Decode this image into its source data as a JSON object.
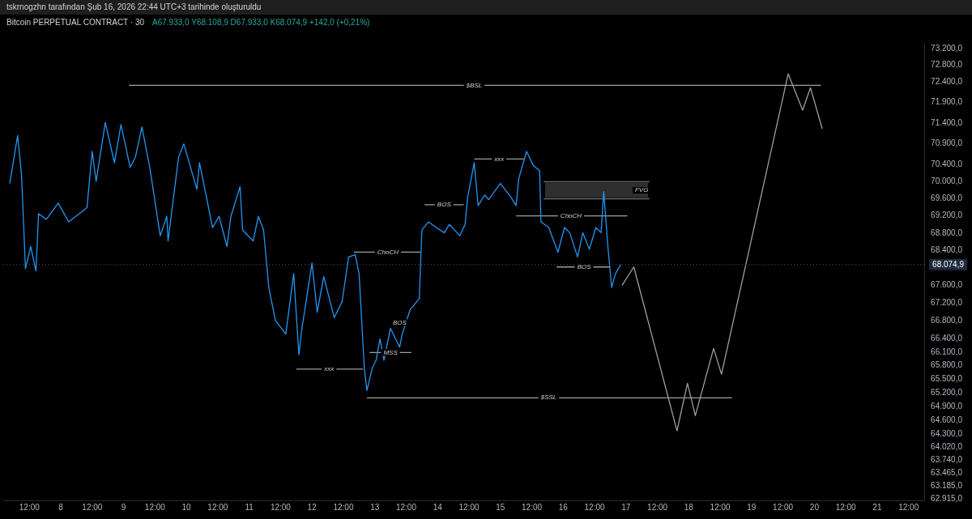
{
  "chart_data": {
    "type": "line",
    "title": "Bitcoin PERPETUAL CONTRACT · 30",
    "subtitle": "A67.933,0 Y68.108,9 D67.933,0 K68.074,9 +142,0 (+0,21%)",
    "annotations": [
      "tskrnogzhn tarafından Şub 16, 2026 22:44 UTC+3 tarihinde oluşturuldu",
      {
        "text": "$BSL",
        "x": "2026-02-14T14:00",
        "y": 72310
      },
      {
        "text": "$SSL",
        "x": "2026-02-15T18:30",
        "y": 65090
      },
      {
        "text": "xxx",
        "x": "2026-02-12T06:30",
        "y": 65720
      },
      {
        "text": "ChoCH",
        "x": "2026-02-13T05:00",
        "y": 68360
      },
      {
        "text": "MSS",
        "x": "2026-02-13T06:00",
        "y": 66090
      },
      {
        "text": "BOS",
        "x": "2026-02-13T09:30",
        "y": 66760
      },
      {
        "text": "BOS",
        "x": "2026-02-14T02:30",
        "y": 69460
      },
      {
        "text": "xxx",
        "x": "2026-02-14T23:30",
        "y": 70540
      },
      {
        "text": "ChoCH",
        "x": "2026-02-16T03:00",
        "y": 69200
      },
      {
        "text": "BOS",
        "x": "2026-02-16T08:00",
        "y": 68020
      },
      {
        "text": "FVG",
        "x": "2026-02-17T06:00",
        "y": 69800
      }
    ],
    "xlim": [
      "2026-02-07T02:00",
      "2026-02-21T18:00"
    ],
    "xticks": [
      {
        "value": "2026-02-07T12:00",
        "label": "12:00"
      },
      {
        "value": "2026-02-08",
        "label": "8"
      },
      {
        "value": "2026-02-08T12:00",
        "label": "12:00"
      },
      {
        "value": "2026-02-09",
        "label": "9"
      },
      {
        "value": "2026-02-09T12:00",
        "label": "12:00"
      },
      {
        "value": "2026-02-10",
        "label": "10"
      },
      {
        "value": "2026-02-10T12:00",
        "label": "12:00"
      },
      {
        "value": "2026-02-11",
        "label": "11"
      },
      {
        "value": "2026-02-11T12:00",
        "label": "12:00"
      },
      {
        "value": "2026-02-12",
        "label": "12"
      },
      {
        "value": "2026-02-12T12:00",
        "label": "12:00"
      },
      {
        "value": "2026-02-13",
        "label": "13"
      },
      {
        "value": "2026-02-13T12:00",
        "label": "12:00"
      },
      {
        "value": "2026-02-14",
        "label": "14"
      },
      {
        "value": "2026-02-14T12:00",
        "label": "12:00"
      },
      {
        "value": "2026-02-15",
        "label": "15"
      },
      {
        "value": "2026-02-15T12:00",
        "label": "12:00"
      },
      {
        "value": "2026-02-16",
        "label": "16"
      },
      {
        "value": "2026-02-16T12:00",
        "label": "12:00"
      },
      {
        "value": "2026-02-17",
        "label": "17"
      },
      {
        "value": "2026-02-17T12:00",
        "label": "12:00"
      },
      {
        "value": "2026-02-18",
        "label": "18"
      },
      {
        "value": "2026-02-18T12:00",
        "label": "12:00"
      },
      {
        "value": "2026-02-19",
        "label": "19"
      },
      {
        "value": "2026-02-19T12:00",
        "label": "12:00"
      },
      {
        "value": "2026-02-20",
        "label": "20"
      },
      {
        "value": "2026-02-20T12:00",
        "label": "12:00"
      },
      {
        "value": "2026-02-21",
        "label": "21"
      },
      {
        "value": "2026-02-21T12:00",
        "label": "12:00"
      }
    ],
    "ylim": [
      62880,
      73350
    ],
    "log": true,
    "yticks": [
      {
        "value": 73200,
        "label": "73.200,0"
      },
      {
        "value": 72800,
        "label": "72.800,0"
      },
      {
        "value": 72400,
        "label": "72.400,0"
      },
      {
        "value": 71900,
        "label": "71.900,0"
      },
      {
        "value": 71400,
        "label": "71.400,0"
      },
      {
        "value": 70900,
        "label": "70.900,0"
      },
      {
        "value": 70400,
        "label": "70.400,0"
      },
      {
        "value": 70000,
        "label": "70.000,0"
      },
      {
        "value": 69600,
        "label": "69.600,0"
      },
      {
        "value": 69200,
        "label": "69.200,0"
      },
      {
        "value": 68800,
        "label": "68.800,0"
      },
      {
        "value": 68400,
        "label": "68.400,0"
      },
      {
        "value": 67600,
        "label": "67.600,0"
      },
      {
        "value": 67200,
        "label": "67.200,0"
      },
      {
        "value": 66800,
        "label": "66.800,0"
      },
      {
        "value": 66400,
        "label": "66.400,0"
      },
      {
        "value": 66100,
        "label": "66.100,0"
      },
      {
        "value": 65800,
        "label": "65.800,0"
      },
      {
        "value": 65500,
        "label": "65.500,0"
      },
      {
        "value": 65200,
        "label": "65.200,0"
      },
      {
        "value": 64900,
        "label": "64.900,0"
      },
      {
        "value": 64600,
        "label": "64.600,0"
      },
      {
        "value": 64300,
        "label": "64.300,0"
      },
      {
        "value": 64020,
        "label": "64.020,0"
      },
      {
        "value": 63740,
        "label": "63.740,0"
      },
      {
        "value": 63465,
        "label": "63.465,0"
      },
      {
        "value": 63185,
        "label": "63.185,0"
      },
      {
        "value": 62915,
        "label": "62.915,0"
      }
    ],
    "marker": "none",
    "ref_lines": [
      {
        "axis": "y",
        "value": 68074.9,
        "label": "68.074,9",
        "color": "#5a5a5a",
        "line_style": "dotted"
      }
    ],
    "series": [
      {
        "color": "#2196f3",
        "x": [
          "2026-02-07T04:30",
          "2026-02-07T07:30",
          "2026-02-07T09:00",
          "2026-02-07T10:30",
          "2026-02-07T12:30",
          "2026-02-07T14:30",
          "2026-02-07T15:30",
          "2026-02-07T18:30",
          "2026-02-07T23:00",
          "2026-02-08T03:00",
          "2026-02-08T07:00",
          "2026-02-08T10:00",
          "2026-02-08T12:00",
          "2026-02-08T13:30",
          "2026-02-08T17:00",
          "2026-02-08T20:30",
          "2026-02-08T23:00",
          "2026-02-09T02:30",
          "2026-02-09T04:30",
          "2026-02-09T07:00",
          "2026-02-09T10:00",
          "2026-02-09T14:00",
          "2026-02-09T16:30",
          "2026-02-09T17:00",
          "2026-02-09T21:00",
          "2026-02-09T23:00",
          "2026-02-10T04:00",
          "2026-02-10T05:00",
          "2026-02-10T10:00",
          "2026-02-10T12:30",
          "2026-02-10T15:30",
          "2026-02-10T17:00",
          "2026-02-10T20:30",
          "2026-02-10T21:30",
          "2026-02-11T01:30",
          "2026-02-11T03:30",
          "2026-02-11T05:30",
          "2026-02-11T07:30",
          "2026-02-11T10:00",
          "2026-02-11T14:00",
          "2026-02-11T17:00",
          "2026-02-11T19:00",
          "2026-02-11T20:00",
          "2026-02-12T00:00",
          "2026-02-12T02:00",
          "2026-02-12T04:30",
          "2026-02-12T08:30",
          "2026-02-12T11:30",
          "2026-02-12T14:00",
          "2026-02-12T16:30",
          "2026-02-12T18:00",
          "2026-02-12T20:00",
          "2026-02-12T21:00",
          "2026-02-12T23:00",
          "2026-02-13T00:30",
          "2026-02-13T02:00",
          "2026-02-13T03:30",
          "2026-02-13T06:00",
          "2026-02-13T09:30",
          "2026-02-13T10:30",
          "2026-02-13T13:30",
          "2026-02-13T17:00",
          "2026-02-13T18:00",
          "2026-02-13T20:30",
          "2026-02-13T23:30",
          "2026-02-14T02:30",
          "2026-02-14T04:30",
          "2026-02-14T08:30",
          "2026-02-14T10:30",
          "2026-02-14T11:30",
          "2026-02-14T14:00",
          "2026-02-14T15:30",
          "2026-02-14T18:00",
          "2026-02-14T19:30",
          "2026-02-15T00:00",
          "2026-02-15T04:00",
          "2026-02-15T06:00",
          "2026-02-15T07:00",
          "2026-02-15T10:00",
          "2026-02-15T12:30",
          "2026-02-15T15:00",
          "2026-02-15T15:30",
          "2026-02-15T18:30",
          "2026-02-15T22:00",
          "2026-02-16T00:30",
          "2026-02-16T02:30",
          "2026-02-16T05:30",
          "2026-02-16T07:30",
          "2026-02-16T10:00",
          "2026-02-16T12:30",
          "2026-02-16T14:30",
          "2026-02-16T15:30",
          "2026-02-16T17:00",
          "2026-02-16T18:30",
          "2026-02-16T20:00",
          "2026-02-16T22:00"
        ],
        "values": [
          69960,
          71100,
          70150,
          67980,
          68490,
          67930,
          69250,
          69120,
          69500,
          69060,
          69250,
          69390,
          70720,
          70010,
          71410,
          70450,
          71360,
          70340,
          70580,
          71300,
          70340,
          68740,
          69190,
          68620,
          70580,
          70900,
          69820,
          70450,
          68930,
          69190,
          68490,
          69190,
          69880,
          68870,
          68620,
          69190,
          68870,
          67550,
          66810,
          66500,
          67870,
          66040,
          66570,
          68110,
          66990,
          67800,
          66870,
          67230,
          68250,
          68300,
          67870,
          65740,
          65250,
          65740,
          65920,
          66390,
          65920,
          66630,
          66210,
          66500,
          67050,
          67300,
          68870,
          69060,
          68930,
          68810,
          69000,
          68740,
          69000,
          69640,
          70450,
          69440,
          69690,
          69580,
          69960,
          69640,
          69440,
          70070,
          70720,
          70390,
          70260,
          69060,
          68930,
          68360,
          68930,
          68810,
          68250,
          68810,
          68430,
          68930,
          68810,
          69770,
          68550,
          67550,
          67870,
          68074.9
        ]
      },
      {
        "color": "#9e9e9e",
        "x": [
          "2026-02-16T22:30",
          "2026-02-17T03:00",
          "2026-02-17T19:30",
          "2026-02-17T23:30",
          "2026-02-18T02:30",
          "2026-02-18T09:30",
          "2026-02-18T12:30",
          "2026-02-19T14:00",
          "2026-02-19T19:30",
          "2026-02-19T22:30",
          "2026-02-20T03:00"
        ],
        "values": [
          67600,
          68020,
          64370,
          65410,
          64700,
          66180,
          65610,
          72590,
          71710,
          72250,
          71260
        ]
      },
      {
        "type": "line",
        "color": "#9e9e9e",
        "x": [
          "2026-02-09T02:00",
          "2026-02-20T02:30"
        ],
        "values": [
          72310,
          72310
        ]
      },
      {
        "type": "line",
        "color": "#9e9e9e",
        "x": [
          "2026-02-12T21:00",
          "2026-02-18T16:30"
        ],
        "values": [
          65090,
          65090
        ]
      },
      {
        "type": "line",
        "color": "#9e9e9e",
        "x": [
          "2026-02-11T18:00",
          "2026-02-12T19:30"
        ],
        "values": [
          65720,
          65720
        ]
      },
      {
        "type": "line",
        "color": "#9e9e9e",
        "x": [
          "2026-02-12T16:00",
          "2026-02-13T17:30"
        ],
        "values": [
          68360,
          68360
        ]
      },
      {
        "type": "line",
        "color": "#9e9e9e",
        "x": [
          "2026-02-12T22:00",
          "2026-02-13T14:00"
        ],
        "values": [
          66090,
          66090
        ]
      },
      {
        "type": "line",
        "color": "#9e9e9e",
        "x": [
          "2026-02-13T19:00",
          "2026-02-14T10:00"
        ],
        "values": [
          69460,
          69460
        ]
      },
      {
        "type": "line",
        "color": "#9e9e9e",
        "x": [
          "2026-02-14T14:00",
          "2026-02-15T09:00"
        ],
        "values": [
          70540,
          70540
        ]
      },
      {
        "type": "line",
        "color": "#9e9e9e",
        "x": [
          "2026-02-15T06:00",
          "2026-02-17T00:30"
        ],
        "values": [
          69200,
          69200
        ]
      },
      {
        "type": "line",
        "color": "#9e9e9e",
        "x": [
          "2026-02-15T21:30",
          "2026-02-16T18:00"
        ],
        "values": [
          68020,
          68020
        ]
      },
      {
        "type": "line",
        "color": "#6a6a6a",
        "x": [
          "2026-02-15T16:30",
          "2026-02-17T09:00"
        ],
        "values": [
          70000,
          70000
        ]
      },
      {
        "type": "line",
        "color": "#6a6a6a",
        "x": [
          "2026-02-15T16:30",
          "2026-02-17T09:00"
        ],
        "values": [
          69600,
          69600
        ]
      }
    ]
  }
}
